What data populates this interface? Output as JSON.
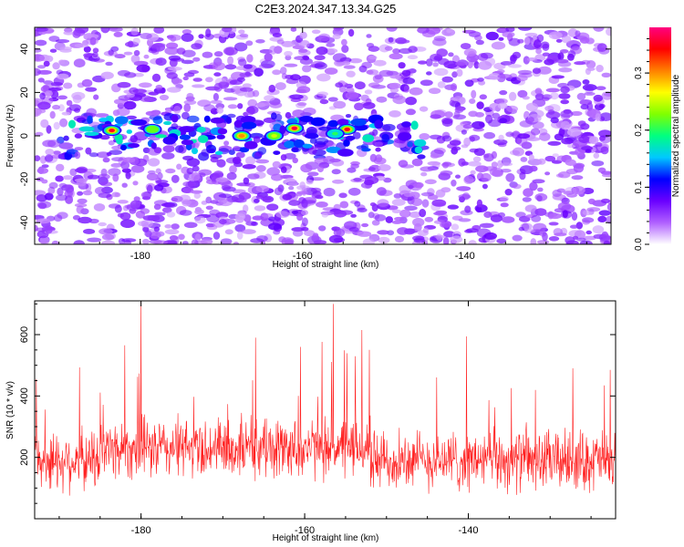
{
  "title": "C2E3.2024.347.13.34.G25",
  "chart_data": [
    {
      "type": "heatmap",
      "title": "",
      "xlabel": "Height of straight line (km)",
      "ylabel": "Frequency (Hz)",
      "xlim": [
        -193,
        -122
      ],
      "ylim": [
        -50,
        50
      ],
      "xticks": [
        -180,
        -160,
        -140
      ],
      "xtick_labels": [
        "-180",
        "-160",
        "-140"
      ],
      "yticks": [
        -40,
        -20,
        0,
        20,
        40
      ],
      "ytick_labels": [
        "-40",
        "-20",
        "0",
        "20",
        "40"
      ],
      "colorbar": {
        "label": "Normalized spectral amplitude",
        "range": [
          0.0,
          0.38
        ],
        "ticks": [
          0.0,
          0.1,
          0.2,
          0.3
        ],
        "tick_labels": [
          "0.0",
          "0.1",
          "0.2",
          "0.3"
        ],
        "colors": [
          "#ffffff",
          "#b060ff",
          "#6a00ff",
          "#0000ff",
          "#00c8ff",
          "#00ff80",
          "#80ff00",
          "#ffff00",
          "#ff8000",
          "#ff0000",
          "#ff0080"
        ]
      },
      "features": {
        "band_center_hz": 0,
        "band_halfwidth_hz": 10,
        "band_x_range": [
          -190,
          -145
        ],
        "strong_peaks": [
          {
            "x": -183.5,
            "y": 2.5,
            "amplitude": 0.35
          },
          {
            "x": -178.5,
            "y": 3.0,
            "amplitude": 0.22
          },
          {
            "x": -167.5,
            "y": 0.0,
            "amplitude": 0.3
          },
          {
            "x": -163.5,
            "y": 0.0,
            "amplitude": 0.25
          },
          {
            "x": -161.0,
            "y": 3.5,
            "amplitude": 0.36
          },
          {
            "x": -154.5,
            "y": 3.0,
            "amplitude": 0.35
          },
          {
            "x": -156.0,
            "y": 1.0,
            "amplitude": 0.2
          }
        ]
      }
    },
    {
      "type": "line",
      "title": "",
      "xlabel": "Height of straight line (km)",
      "ylabel": "SNR (10 * v/v)",
      "xlim": [
        -193,
        -122
      ],
      "ylim": [
        0,
        710
      ],
      "xticks": [
        -180,
        -160,
        -140
      ],
      "xtick_labels": [
        "-180",
        "-160",
        "-140"
      ],
      "yticks": [
        200,
        400,
        600
      ],
      "ytick_labels": [
        "200",
        "400",
        "600"
      ],
      "color": "#ff2020",
      "series_summary": {
        "baseline_mean": 190,
        "noise_range": [
          40,
          420
        ],
        "notable_peaks": [
          {
            "x": -180.0,
            "value": 710
          },
          {
            "x": -156.5,
            "value": 700
          },
          {
            "x": -153.0,
            "value": 615
          },
          {
            "x": -166.0,
            "value": 590
          },
          {
            "x": -182.0,
            "value": 565
          },
          {
            "x": -160.5,
            "value": 560
          }
        ]
      }
    }
  ]
}
